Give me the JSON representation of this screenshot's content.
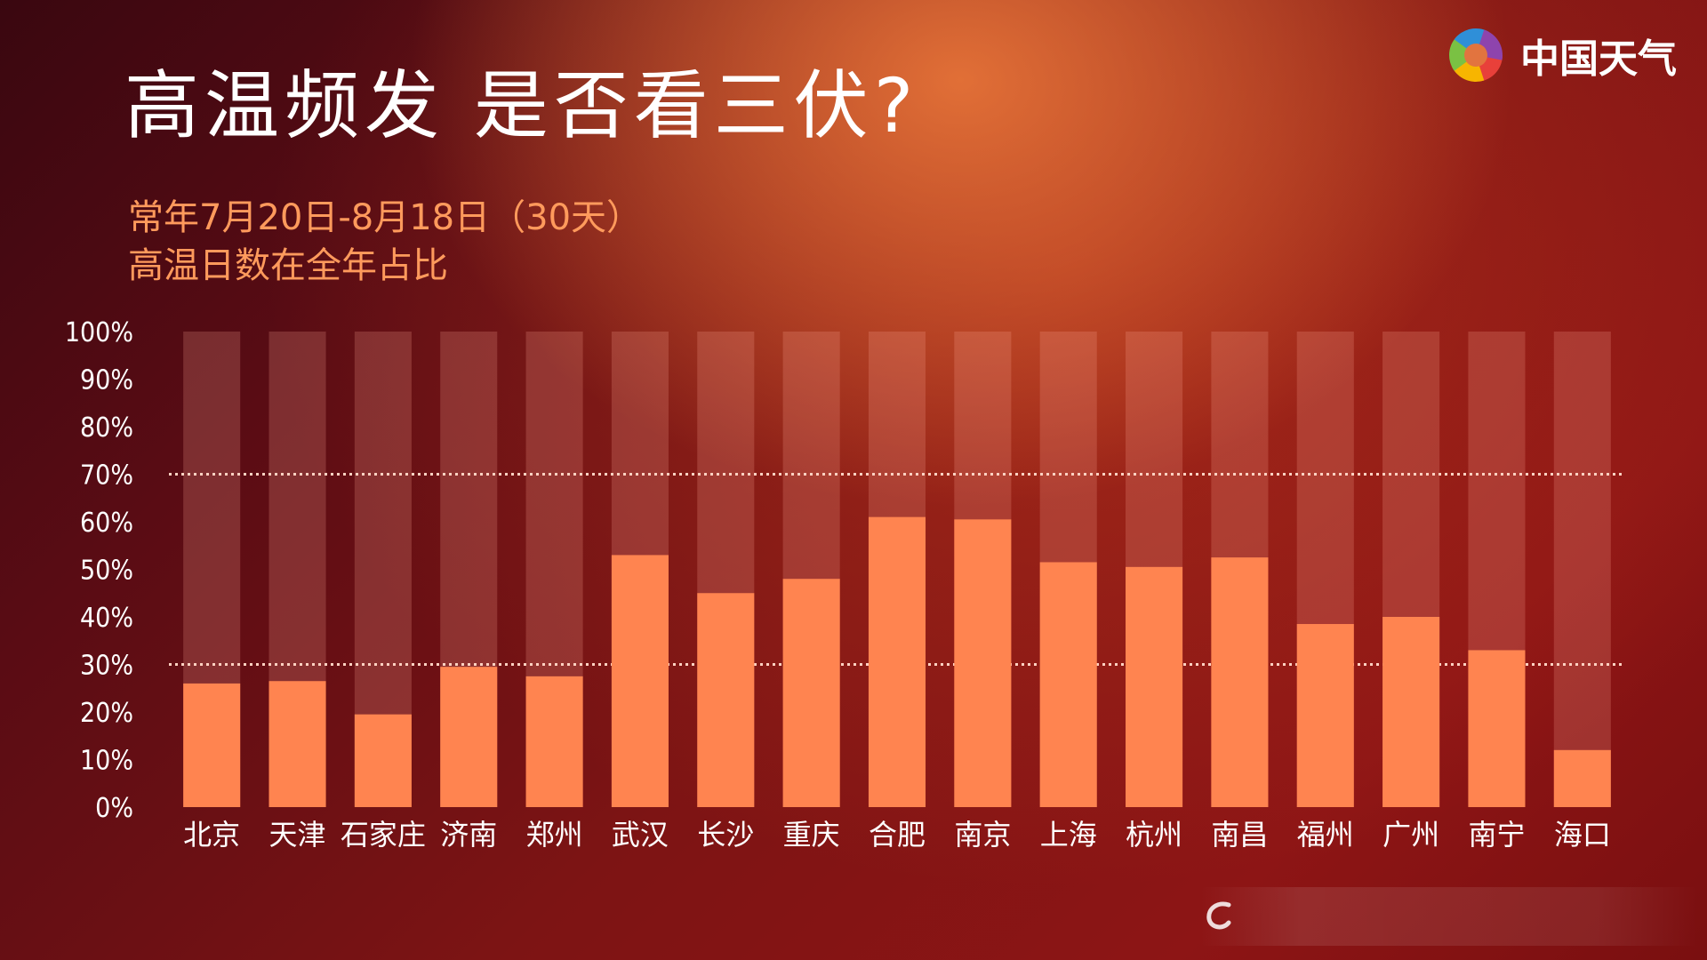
{
  "title": "高温频发  是否看三伏?",
  "subtitle": {
    "line1": "常年7月20日-8月18日（30天）",
    "line2": "高温日数在全年占比"
  },
  "logo": {
    "text": "中国天气",
    "colors": [
      "#e8403a",
      "#f7b500",
      "#7ac143",
      "#2f8fd8",
      "#8e44ad"
    ]
  },
  "colors": {
    "bar": "#ff8450",
    "bar_background": "rgba(255,170,150,0.22)",
    "axis_text": "#ffffff",
    "reference_line": "#ffd2c2"
  },
  "chart_data": {
    "type": "bar",
    "title": "",
    "xlabel": "",
    "ylabel": "",
    "ylim": [
      0,
      100
    ],
    "yticks": [
      "0%",
      "10%",
      "20%",
      "30%",
      "40%",
      "50%",
      "60%",
      "70%",
      "80%",
      "90%",
      "100%"
    ],
    "categories": [
      "北京",
      "天津",
      "石家庄",
      "济南",
      "郑州",
      "武汉",
      "长沙",
      "重庆",
      "合肥",
      "南京",
      "上海",
      "杭州",
      "南昌",
      "福州",
      "广州",
      "南宁",
      "海口"
    ],
    "values": [
      26,
      26.5,
      19.5,
      29.5,
      27.5,
      53,
      45,
      48,
      61,
      60.5,
      51.5,
      50.5,
      52.5,
      38.5,
      40,
      33,
      12
    ],
    "background_value": 100,
    "reference_lines": [
      30,
      70
    ],
    "grid": false,
    "legend": "none"
  }
}
